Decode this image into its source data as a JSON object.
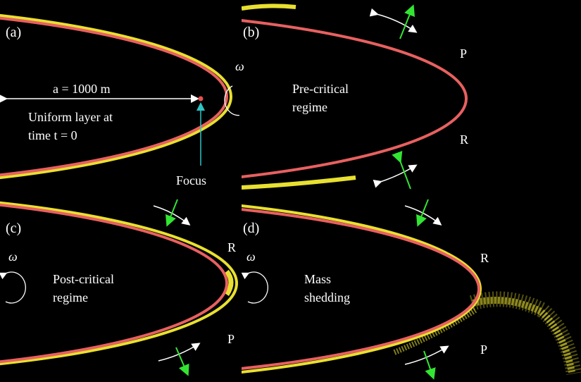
{
  "panels": [
    {
      "label": "(a)",
      "dimension": "a = 1000 m",
      "caption": [
        "Uniform layer at",
        "time t = 0"
      ],
      "focus": "Focus",
      "omega": "ω"
    },
    {
      "label": "(b)",
      "caption": [
        "Pre-critical",
        "regime"
      ],
      "top_point": "P",
      "bottom_point": "R"
    },
    {
      "label": "(c)",
      "caption": [
        "Post-critical",
        "regime"
      ],
      "top_point": "R",
      "bottom_point": "P",
      "omega": "ω"
    },
    {
      "label": "(d)",
      "caption": [
        "Mass",
        "shedding"
      ],
      "top_point": "R",
      "bottom_point": "P",
      "omega": "ω"
    }
  ]
}
